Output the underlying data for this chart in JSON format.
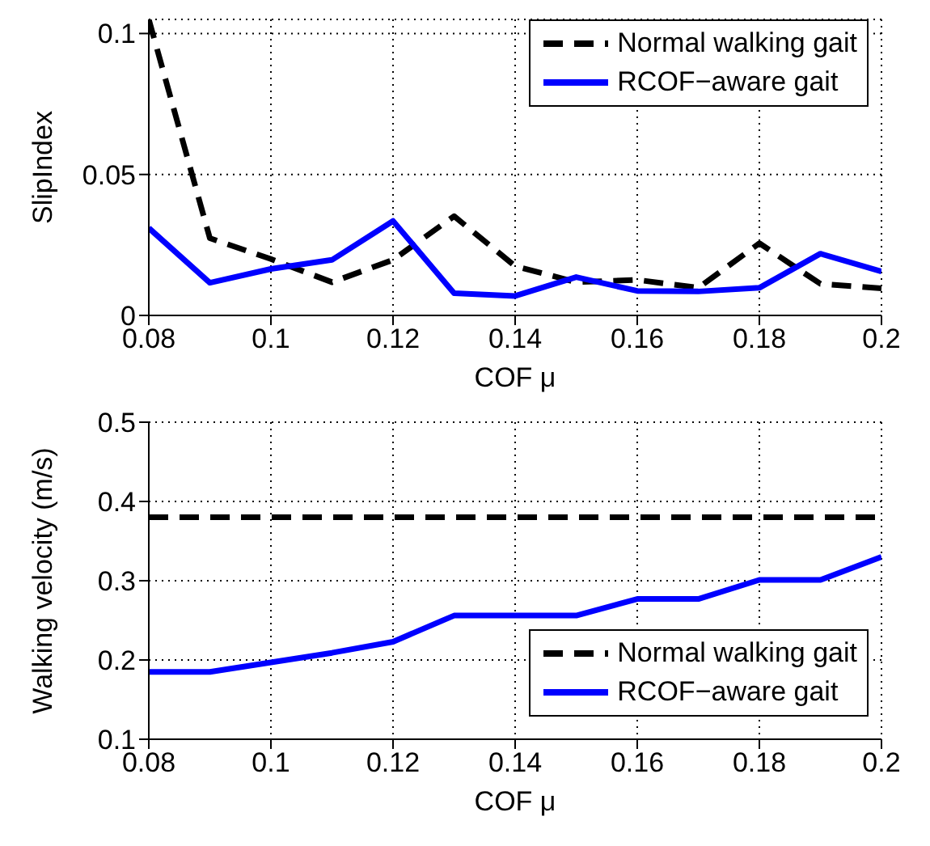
{
  "chart_data": [
    {
      "type": "line",
      "xlabel": "COF μ",
      "ylabel": "SlipIndex",
      "x": [
        0.08,
        0.09,
        0.1,
        0.11,
        0.12,
        0.13,
        0.14,
        0.15,
        0.16,
        0.17,
        0.18,
        0.19,
        0.2
      ],
      "series": [
        {
          "name": "Normal walking gait",
          "color": "#000000",
          "line_style": "dashed",
          "values": [
            0.105,
            0.0274,
            0.02,
            0.0118,
            0.0197,
            0.0352,
            0.0175,
            0.0118,
            0.0126,
            0.0098,
            0.0256,
            0.0112,
            0.0096
          ]
        },
        {
          "name": "RCOF−aware gait",
          "color": "#0000ff",
          "line_style": "solid",
          "values": [
            0.031,
            0.0116,
            0.0165,
            0.0197,
            0.0335,
            0.0079,
            0.0069,
            0.0136,
            0.0087,
            0.0085,
            0.0098,
            0.0219,
            0.0156
          ]
        }
      ],
      "xlim": [
        0.08,
        0.2
      ],
      "xticks": [
        0.08,
        0.1,
        0.12,
        0.14,
        0.16,
        0.18,
        0.2
      ],
      "ylim": [
        0,
        0.105
      ],
      "yticks": [
        0,
        0.05,
        0.1
      ],
      "grid": true,
      "legend": "top right",
      "marker": "none"
    },
    {
      "type": "line",
      "xlabel": "COF μ",
      "ylabel": "Walking velocity (m/s)",
      "x": [
        0.08,
        0.09,
        0.1,
        0.11,
        0.12,
        0.13,
        0.14,
        0.15,
        0.16,
        0.17,
        0.18,
        0.19,
        0.2
      ],
      "series": [
        {
          "name": "Normal walking gait",
          "color": "#000000",
          "line_style": "dashed",
          "values": [
            0.38,
            0.38,
            0.38,
            0.38,
            0.38,
            0.38,
            0.38,
            0.38,
            0.38,
            0.38,
            0.38,
            0.38,
            0.38
          ]
        },
        {
          "name": "RCOF−aware gait",
          "color": "#0000ff",
          "line_style": "solid",
          "values": [
            0.185,
            0.185,
            0.197,
            0.209,
            0.223,
            0.256,
            0.256,
            0.256,
            0.277,
            0.277,
            0.301,
            0.301,
            0.33
          ]
        }
      ],
      "xlim": [
        0.08,
        0.2
      ],
      "xticks": [
        0.08,
        0.1,
        0.12,
        0.14,
        0.16,
        0.18,
        0.2
      ],
      "ylim": [
        0.1,
        0.5
      ],
      "yticks": [
        0.1,
        0.2,
        0.3,
        0.4,
        0.5
      ],
      "grid": true,
      "legend": "bottom right",
      "marker": "none"
    }
  ]
}
